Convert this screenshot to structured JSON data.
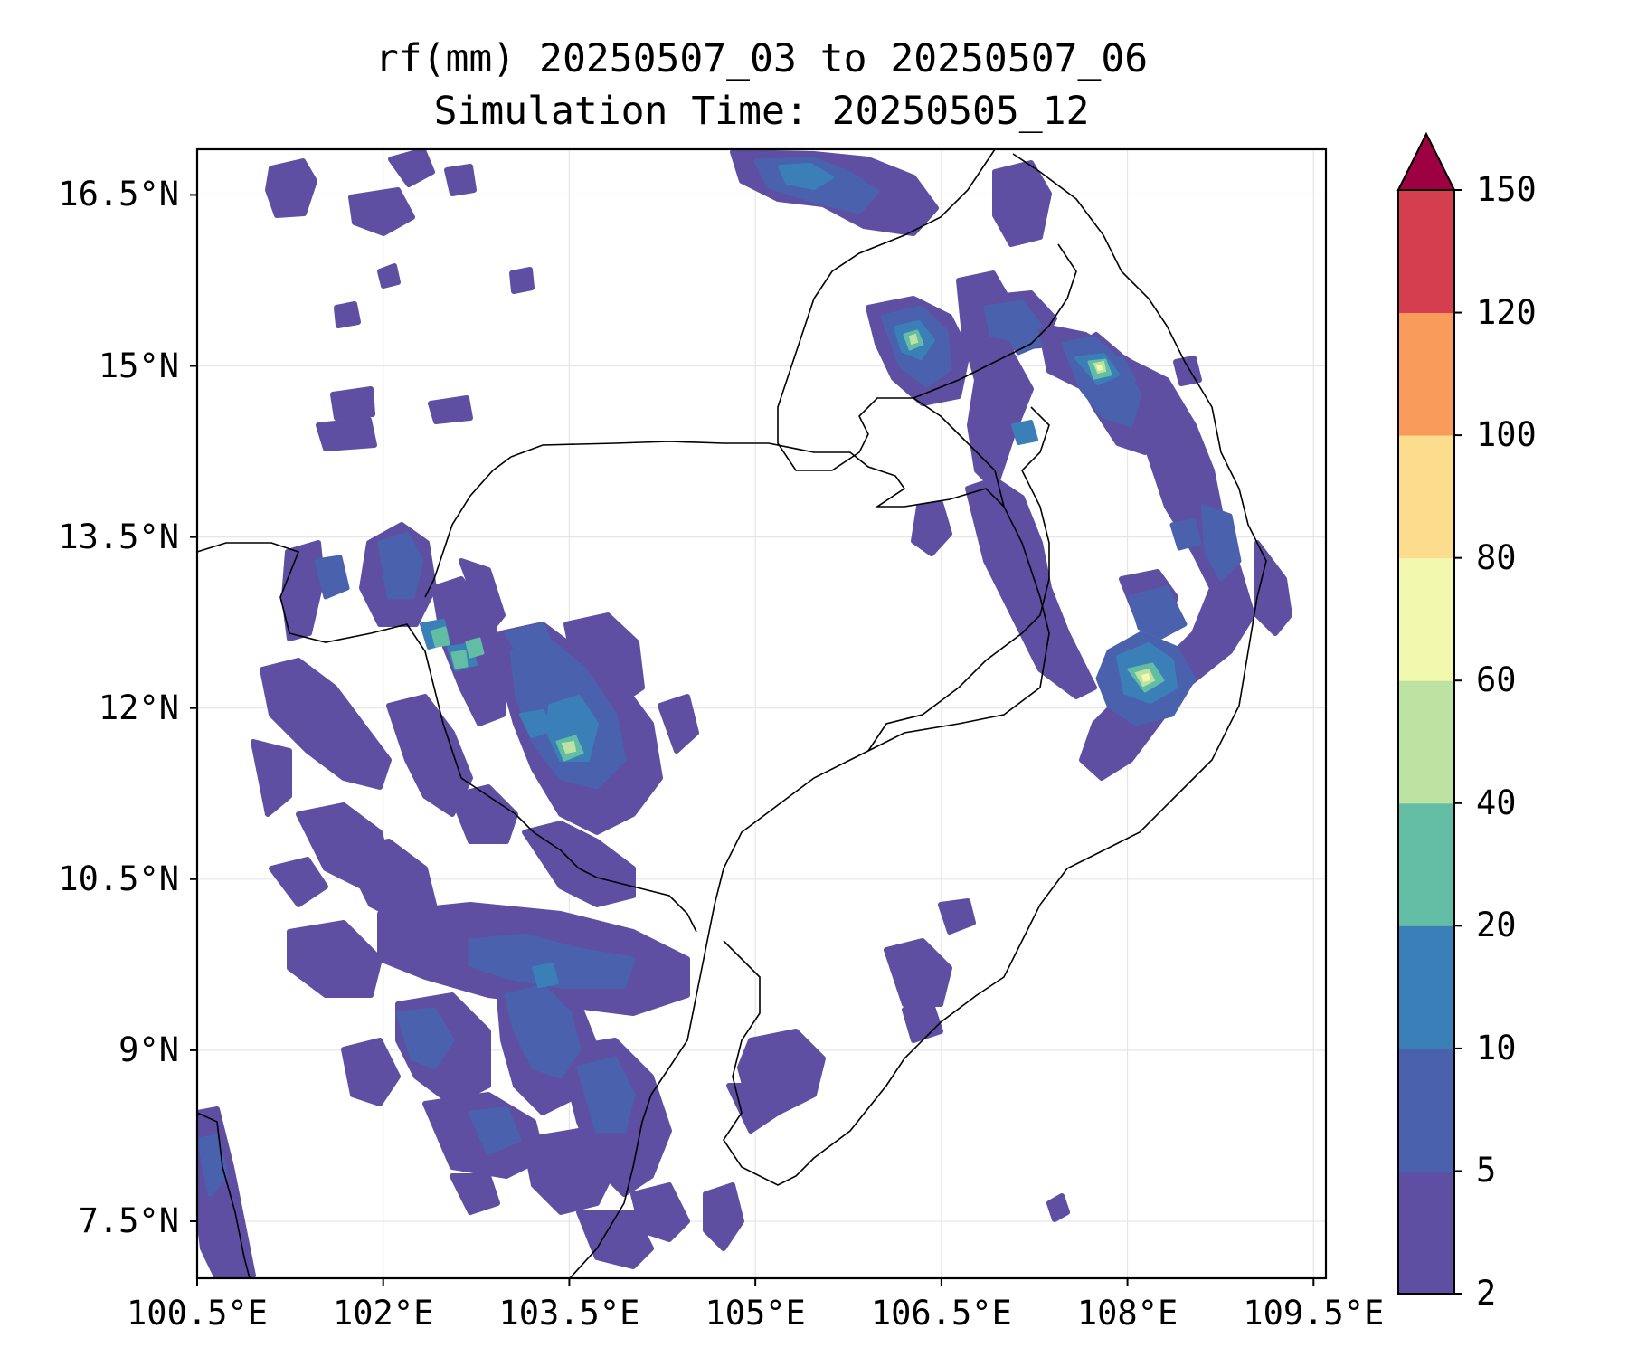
{
  "title": {
    "line1": "rf(mm) 20250507_03 to 20250507_06",
    "line2": "Simulation Time: 20250505_12"
  },
  "map": {
    "lat_range": [
      7.0,
      16.9
    ],
    "lon_range": [
      100.5,
      109.6
    ],
    "lat_ticks": [
      {
        "value": 16.5,
        "label": "16.5°N"
      },
      {
        "value": 15.0,
        "label": "15°N"
      },
      {
        "value": 13.5,
        "label": "13.5°N"
      },
      {
        "value": 12.0,
        "label": "12°N"
      },
      {
        "value": 10.5,
        "label": "10.5°N"
      },
      {
        "value": 9.0,
        "label": "9°N"
      },
      {
        "value": 7.5,
        "label": "7.5°N"
      }
    ],
    "lon_ticks": [
      {
        "value": 100.5,
        "label": "100.5°E"
      },
      {
        "value": 102.0,
        "label": "102°E"
      },
      {
        "value": 103.5,
        "label": "103.5°E"
      },
      {
        "value": 105.0,
        "label": "105°E"
      },
      {
        "value": 106.5,
        "label": "106.5°E"
      },
      {
        "value": 108.0,
        "label": "108°E"
      },
      {
        "value": 109.5,
        "label": "109.5°E"
      }
    ],
    "gridlines": true
  },
  "colorbar": {
    "levels": [
      2,
      5,
      10,
      20,
      40,
      60,
      80,
      100,
      120,
      150
    ],
    "tick_labels": [
      "2",
      "5",
      "10",
      "20",
      "40",
      "60",
      "80",
      "100",
      "120",
      "150"
    ],
    "colors": [
      "#5e4fa2",
      "#4a61ad",
      "#3a7fb7",
      "#63bda4",
      "#bde2a2",
      "#f2f8ae",
      "#fcdd8e",
      "#f99c5b",
      "#d53e4f"
    ],
    "extend_color": "#9e0142",
    "extend": "max"
  }
}
